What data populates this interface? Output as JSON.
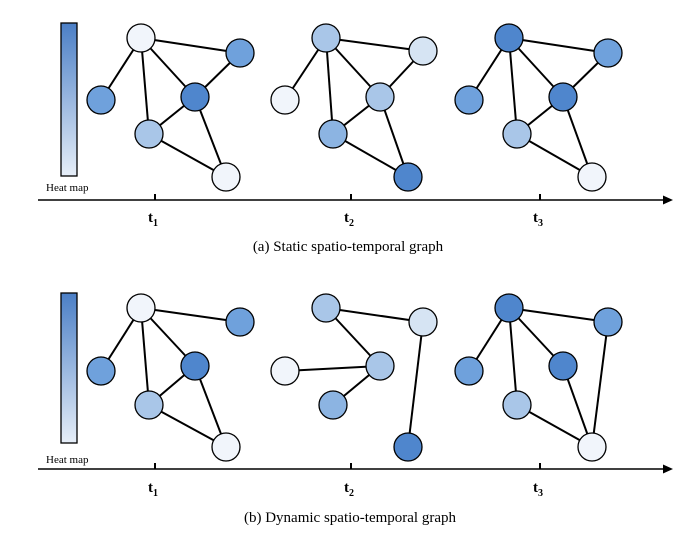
{
  "colors": {
    "c0": "#f1f5fb",
    "c1": "#d6e4f3",
    "c2": "#a9c6e8",
    "c3": "#8cb4e2",
    "c4": "#6fa1dc",
    "c5": "#4f86cd",
    "heat_top": "#4b7fc6",
    "heat_bottom": "#e6eef8"
  },
  "panels": [
    {
      "id": "static",
      "caption": "(a) Static spatio-temporal graph",
      "heat_label": "Heat map",
      "axis_arrow": "arrow-right-icon",
      "times": [
        {
          "base": "t",
          "sub": "1"
        },
        {
          "base": "t",
          "sub": "2"
        },
        {
          "base": "t",
          "sub": "3"
        }
      ],
      "graphs": [
        {
          "colors": [
            "c0",
            "c4",
            "c4",
            "c5",
            "c2",
            "c0"
          ]
        },
        {
          "colors": [
            "c2",
            "c0",
            "c1",
            "c2",
            "c3",
            "c5"
          ]
        },
        {
          "colors": [
            "c5",
            "c4",
            "c4",
            "c5",
            "c2",
            "c0"
          ]
        }
      ]
    },
    {
      "id": "dynamic",
      "caption": "(b) Dynamic spatio-temporal graph",
      "heat_label": "Heat map",
      "axis_arrow": "arrow-right-icon",
      "times": [
        {
          "base": "t",
          "sub": "1"
        },
        {
          "base": "t",
          "sub": "2"
        },
        {
          "base": "t",
          "sub": "3"
        }
      ],
      "graphs": [
        {
          "colors": [
            "c0",
            "c4",
            "c4",
            "c5",
            "c2",
            "c0"
          ]
        },
        {
          "colors": [
            "c2",
            "c0",
            "c1",
            "c2",
            "c3",
            "c5"
          ]
        },
        {
          "colors": [
            "c5",
            "c4",
            "c4",
            "c5",
            "c2",
            "c0"
          ]
        }
      ]
    }
  ]
}
